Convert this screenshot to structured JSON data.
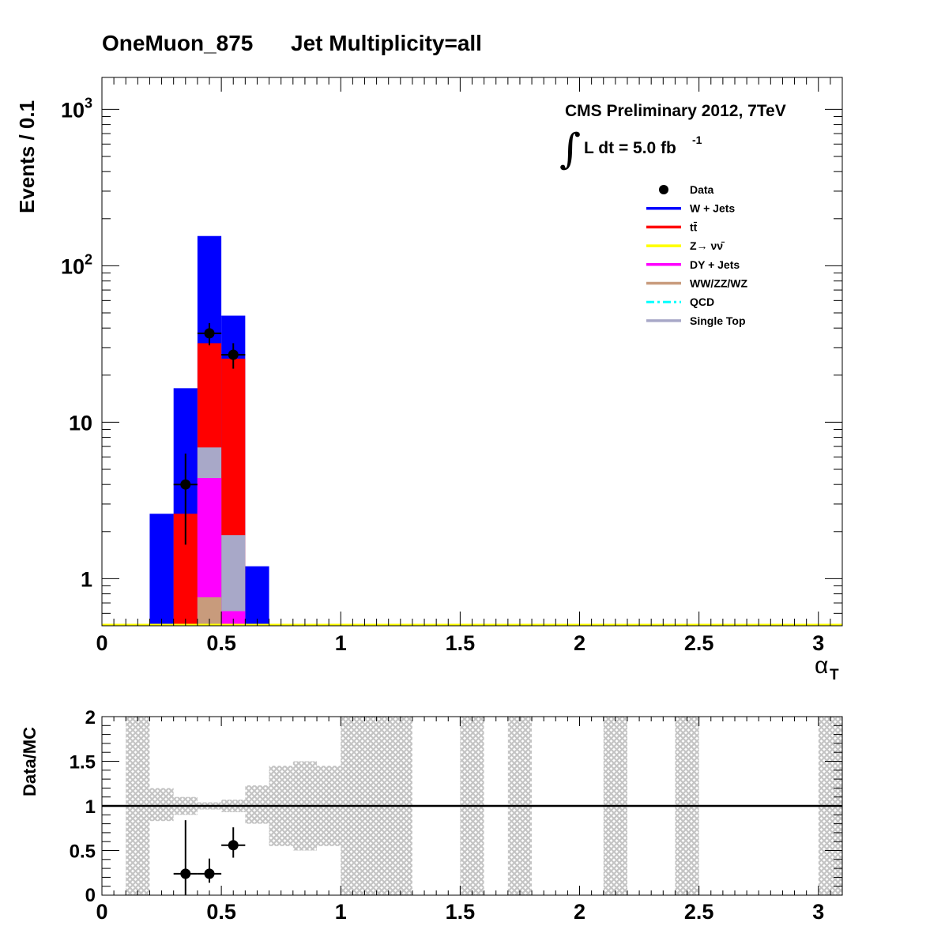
{
  "title": {
    "sample": "OneMuon_875",
    "selection": "Jet Multiplicity=all"
  },
  "annotation": {
    "experiment": "CMS Preliminary 2012, 7TeV",
    "integral_sign": "∫",
    "lumi_text": "L dt = 5.0 fb",
    "lumi_exp": "-1"
  },
  "chart_data": [
    {
      "type": "bar",
      "subtype": "stacked-histogram",
      "title": "OneMuon_875    Jet Multiplicity=all",
      "xlabel": "α",
      "xlabel_sub": "T",
      "ylabel": "Events / 0.1",
      "yscale": "log",
      "xlim": [
        0,
        3.1
      ],
      "ylim": [
        0.5,
        1600
      ],
      "xticks": [
        0,
        0.5,
        1,
        1.5,
        2,
        2.5,
        3
      ],
      "xtick_labels": [
        "0",
        "0.5",
        "1",
        "1.5",
        "2",
        "2.5",
        "3"
      ],
      "yticks": [
        1,
        10,
        100,
        1000
      ],
      "ytick_labels": [
        {
          "base": "1",
          "exp": ""
        },
        {
          "base": "10",
          "exp": ""
        },
        {
          "base": "10",
          "exp": "2"
        },
        {
          "base": "10",
          "exp": "3"
        }
      ],
      "bin_edges": [
        0.2,
        0.3,
        0.4,
        0.5,
        0.6,
        0.7
      ],
      "series_totals": [
        {
          "name": "W + Jets",
          "color": "#0000ff",
          "values": [
            2.6,
            16.5,
            155,
            48,
            1.2
          ]
        },
        {
          "name": "tt̄",
          "color": "#ff0000",
          "values": [
            0,
            2.6,
            32,
            25.5,
            0
          ]
        },
        {
          "name": "Single Top",
          "color": "#a8a8c8",
          "values": [
            0,
            0,
            6.9,
            1.9,
            0
          ]
        },
        {
          "name": "DY + Jets",
          "color": "#ff00ff",
          "values": [
            0,
            0,
            4.4,
            0.62,
            0
          ]
        },
        {
          "name": "WW/ZZ/WZ",
          "color": "#c89b7c",
          "values": [
            0,
            0,
            0.76,
            0,
            0
          ]
        }
      ],
      "data_points": [
        {
          "x": 0.35,
          "y": 4,
          "yerr_low": 1.65,
          "yerr_high": 6.3,
          "xerr": 0.05
        },
        {
          "x": 0.45,
          "y": 37,
          "yerr_low": 31,
          "yerr_high": 43,
          "xerr": 0.05
        },
        {
          "x": 0.55,
          "y": 27,
          "yerr_low": 22,
          "yerr_high": 32,
          "xerr": 0.05
        }
      ],
      "zero_line": {
        "name": "Z→ νν̄",
        "color": "#ffff00"
      },
      "legend": [
        {
          "label": "Data",
          "kind": "marker",
          "color": "#000000"
        },
        {
          "label": "W + Jets",
          "kind": "line",
          "color": "#0000ff"
        },
        {
          "label": "tt̄",
          "kind": "line",
          "color": "#ff0000"
        },
        {
          "label": "Z→ νν̄",
          "kind": "line",
          "color": "#ffff00"
        },
        {
          "label": "DY + Jets",
          "kind": "line",
          "color": "#ff00ff"
        },
        {
          "label": "WW/ZZ/WZ",
          "kind": "line",
          "color": "#c89b7c"
        },
        {
          "label": "QCD",
          "kind": "dashdot",
          "color": "#00ffff"
        },
        {
          "label": "Single Top",
          "kind": "line",
          "color": "#a8a8c8"
        }
      ],
      "legend_position": "top-right"
    },
    {
      "type": "scatter",
      "subtype": "ratio",
      "ylabel": "Data/MC",
      "xlim": [
        0,
        3.1
      ],
      "ylim": [
        0,
        2
      ],
      "xticks": [
        0,
        0.5,
        1,
        1.5,
        2,
        2.5,
        3
      ],
      "xtick_labels": [
        "0",
        "0.5",
        "1",
        "1.5",
        "2",
        "2.5",
        "3"
      ],
      "yticks": [
        0,
        0.5,
        1,
        1.5,
        2
      ],
      "ytick_labels": [
        "0",
        "0.5",
        "1",
        "1.5",
        "2"
      ],
      "reference_line": 1,
      "uncertainty_band": [
        {
          "x0": 0.1,
          "x1": 0.2,
          "low": 0,
          "high": 2
        },
        {
          "x0": 0.2,
          "x1": 0.3,
          "low": 0.83,
          "high": 1.2
        },
        {
          "x0": 0.3,
          "x1": 0.4,
          "low": 0.9,
          "high": 1.1
        },
        {
          "x0": 0.4,
          "x1": 0.5,
          "low": 0.96,
          "high": 1.04
        },
        {
          "x0": 0.5,
          "x1": 0.6,
          "low": 0.93,
          "high": 1.07
        },
        {
          "x0": 0.6,
          "x1": 0.7,
          "low": 0.8,
          "high": 1.23
        },
        {
          "x0": 0.7,
          "x1": 0.8,
          "low": 0.55,
          "high": 1.45
        },
        {
          "x0": 0.8,
          "x1": 0.9,
          "low": 0.5,
          "high": 1.5
        },
        {
          "x0": 0.9,
          "x1": 1.0,
          "low": 0.55,
          "high": 1.45
        },
        {
          "x0": 1.0,
          "x1": 1.3,
          "low": 0,
          "high": 2
        },
        {
          "x0": 1.5,
          "x1": 1.6,
          "low": 0,
          "high": 2
        },
        {
          "x0": 1.7,
          "x1": 1.8,
          "low": 0,
          "high": 2
        },
        {
          "x0": 2.1,
          "x1": 2.2,
          "low": 0,
          "high": 2
        },
        {
          "x0": 2.4,
          "x1": 2.5,
          "low": 0,
          "high": 2
        },
        {
          "x0": 3.0,
          "x1": 3.1,
          "low": 0,
          "high": 2
        }
      ],
      "points": [
        {
          "x": 0.35,
          "y": 0.24,
          "yerr_low": 0.24,
          "yerr_high": 0.6,
          "xerr": 0.05
        },
        {
          "x": 0.45,
          "y": 0.24,
          "yerr_low": 0.1,
          "yerr_high": 0.17,
          "xerr": 0.05
        },
        {
          "x": 0.55,
          "y": 0.56,
          "yerr_low": 0.14,
          "yerr_high": 0.2,
          "xerr": 0.05
        }
      ]
    }
  ]
}
